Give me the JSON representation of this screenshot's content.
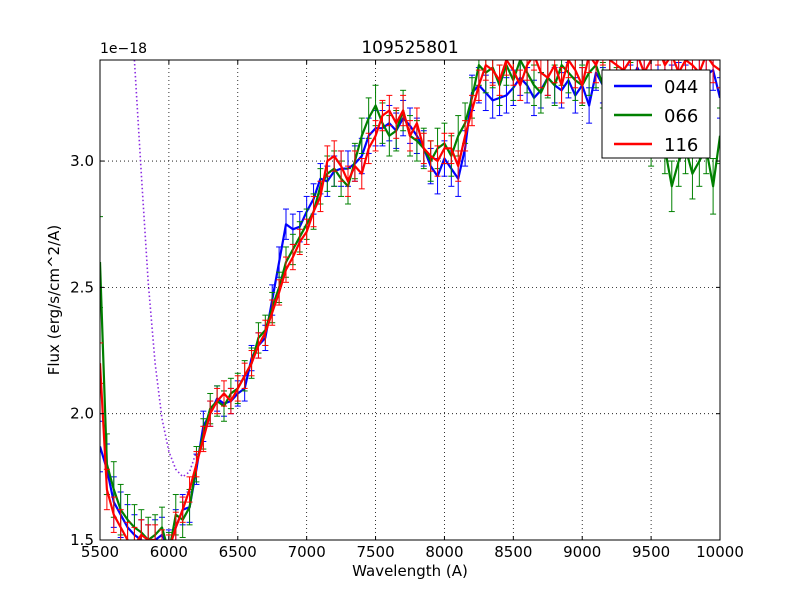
{
  "chart_data": {
    "type": "line",
    "title": "109525801",
    "xlabel": "Wavelength (A)",
    "ylabel": "Flux (erg/s/cm^2/A)",
    "offset_text": "1e−18",
    "xlim": [
      5500,
      10000
    ],
    "ylim": [
      1.5,
      3.4
    ],
    "xticks": [
      5500,
      6000,
      6500,
      7000,
      7500,
      8000,
      8500,
      9000,
      9500,
      10000
    ],
    "yticks": [
      1.5,
      2.0,
      2.5,
      3.0
    ],
    "ytick_labels": [
      "1.5",
      "2.0",
      "2.5",
      "3.0"
    ],
    "grid": true,
    "legend_position": "top-right",
    "colors": {
      "044": "#0000ff",
      "066": "#008000",
      "116": "#ff0000",
      "reference": "#8a2be2"
    },
    "series": [
      {
        "name": "044",
        "color": "#0000ff",
        "x": [
          5500,
          5550,
          5600,
          5650,
          5700,
          5750,
          5800,
          5850,
          5900,
          5950,
          6000,
          6050,
          6100,
          6150,
          6200,
          6250,
          6300,
          6350,
          6400,
          6450,
          6500,
          6550,
          6600,
          6650,
          6700,
          6750,
          6800,
          6850,
          6900,
          6950,
          7000,
          7050,
          7100,
          7150,
          7200,
          7250,
          7300,
          7350,
          7400,
          7450,
          7500,
          7550,
          7600,
          7650,
          7700,
          7750,
          7800,
          7850,
          7900,
          7950,
          8000,
          8050,
          8100,
          8150,
          8200,
          8250,
          8300,
          8350,
          8400,
          8450,
          8500,
          8550,
          8600,
          8650,
          8700,
          8750,
          8800,
          8850,
          8900,
          8950,
          9000,
          9050,
          9100,
          9150,
          9200,
          9250,
          9300,
          9350,
          9400,
          9450,
          9500,
          9550,
          9600,
          9650,
          9700,
          9750,
          9800,
          9850,
          9900,
          9950,
          10000
        ],
        "y": [
          1.87,
          1.78,
          1.65,
          1.6,
          1.55,
          1.52,
          1.5,
          1.48,
          1.5,
          1.52,
          1.47,
          1.55,
          1.62,
          1.63,
          1.78,
          1.95,
          2.0,
          2.06,
          2.04,
          2.05,
          2.08,
          2.1,
          2.22,
          2.27,
          2.3,
          2.45,
          2.6,
          2.75,
          2.73,
          2.74,
          2.8,
          2.85,
          2.93,
          2.92,
          2.96,
          2.97,
          2.97,
          2.99,
          3.02,
          3.1,
          3.13,
          3.13,
          3.15,
          3.12,
          3.17,
          3.14,
          3.1,
          3.05,
          2.98,
          2.94,
          3.01,
          2.97,
          2.93,
          3.05,
          3.27,
          3.3,
          3.27,
          3.24,
          3.25,
          3.26,
          3.29,
          3.33,
          3.3,
          3.25,
          3.28,
          3.33,
          3.3,
          3.28,
          3.32,
          3.26,
          3.3,
          3.22,
          3.35,
          3.3,
          3.33,
          3.27,
          3.36,
          3.3,
          3.37,
          3.32,
          3.35,
          3.33,
          3.36,
          3.3,
          3.31,
          3.3,
          3.33,
          3.32,
          3.34,
          3.36,
          3.25
        ],
        "err": [
          0.1,
          0.1,
          0.1,
          0.09,
          0.09,
          0.08,
          0.08,
          0.08,
          0.08,
          0.07,
          0.07,
          0.07,
          0.06,
          0.06,
          0.06,
          0.06,
          0.05,
          0.05,
          0.05,
          0.05,
          0.05,
          0.05,
          0.05,
          0.05,
          0.05,
          0.06,
          0.06,
          0.06,
          0.06,
          0.06,
          0.06,
          0.06,
          0.06,
          0.06,
          0.06,
          0.07,
          0.07,
          0.07,
          0.07,
          0.07,
          0.07,
          0.07,
          0.07,
          0.07,
          0.07,
          0.07,
          0.07,
          0.07,
          0.07,
          0.07,
          0.07,
          0.07,
          0.07,
          0.07,
          0.07,
          0.07,
          0.07,
          0.07,
          0.07,
          0.07,
          0.07,
          0.07,
          0.07,
          0.07,
          0.07,
          0.07,
          0.07,
          0.07,
          0.07,
          0.07,
          0.07,
          0.07,
          0.07,
          0.07,
          0.07,
          0.08,
          0.08,
          0.08,
          0.08,
          0.08,
          0.08,
          0.08,
          0.08,
          0.08,
          0.08,
          0.08,
          0.08,
          0.08,
          0.08,
          0.08,
          0.08
        ]
      },
      {
        "name": "066",
        "color": "#008000",
        "x": [
          5500,
          5550,
          5600,
          5650,
          5700,
          5750,
          5800,
          5850,
          5900,
          5950,
          6000,
          6050,
          6100,
          6150,
          6200,
          6250,
          6300,
          6350,
          6400,
          6450,
          6500,
          6550,
          6600,
          6650,
          6700,
          6750,
          6800,
          6850,
          6900,
          6950,
          7000,
          7050,
          7100,
          7150,
          7200,
          7250,
          7300,
          7350,
          7400,
          7450,
          7500,
          7550,
          7600,
          7650,
          7700,
          7750,
          7800,
          7850,
          7900,
          7950,
          8000,
          8050,
          8100,
          8150,
          8200,
          8250,
          8300,
          8350,
          8400,
          8450,
          8500,
          8550,
          8600,
          8650,
          8700,
          8750,
          8800,
          8850,
          8900,
          8950,
          9000,
          9050,
          9100,
          9150,
          9200,
          9250,
          9300,
          9350,
          9400,
          9450,
          9500,
          9550,
          9600,
          9650,
          9700,
          9750,
          9800,
          9850,
          9900,
          9950,
          10000
        ],
        "y": [
          2.6,
          1.8,
          1.7,
          1.62,
          1.58,
          1.55,
          1.53,
          1.5,
          1.52,
          1.55,
          1.45,
          1.6,
          1.58,
          1.63,
          1.8,
          1.92,
          2.02,
          2.05,
          2.03,
          2.08,
          2.1,
          2.15,
          2.2,
          2.3,
          2.33,
          2.42,
          2.5,
          2.6,
          2.65,
          2.7,
          2.75,
          2.8,
          2.9,
          2.95,
          2.97,
          2.93,
          2.9,
          3.0,
          3.1,
          3.17,
          3.22,
          3.15,
          3.1,
          3.12,
          3.2,
          3.1,
          3.08,
          3.05,
          3.0,
          3.05,
          3.07,
          3.02,
          3.1,
          3.15,
          3.25,
          3.38,
          3.35,
          3.37,
          3.3,
          3.38,
          3.32,
          3.4,
          3.35,
          3.3,
          3.27,
          3.33,
          3.3,
          3.38,
          3.35,
          3.32,
          3.3,
          3.35,
          3.38,
          3.3,
          3.32,
          3.28,
          3.2,
          3.3,
          3.27,
          3.22,
          3.07,
          3.15,
          3.05,
          2.9,
          3.0,
          3.05,
          2.95,
          3.0,
          3.05,
          2.9,
          3.1
        ],
        "err": [
          0.18,
          0.12,
          0.11,
          0.1,
          0.1,
          0.09,
          0.09,
          0.09,
          0.08,
          0.08,
          0.08,
          0.08,
          0.07,
          0.07,
          0.07,
          0.06,
          0.06,
          0.06,
          0.06,
          0.06,
          0.06,
          0.06,
          0.06,
          0.06,
          0.06,
          0.06,
          0.06,
          0.06,
          0.06,
          0.06,
          0.06,
          0.07,
          0.07,
          0.07,
          0.07,
          0.07,
          0.07,
          0.07,
          0.07,
          0.08,
          0.08,
          0.08,
          0.08,
          0.08,
          0.08,
          0.08,
          0.08,
          0.08,
          0.08,
          0.08,
          0.08,
          0.08,
          0.08,
          0.08,
          0.08,
          0.08,
          0.08,
          0.08,
          0.08,
          0.08,
          0.08,
          0.08,
          0.08,
          0.08,
          0.08,
          0.08,
          0.08,
          0.08,
          0.08,
          0.08,
          0.08,
          0.09,
          0.09,
          0.09,
          0.09,
          0.09,
          0.09,
          0.09,
          0.09,
          0.09,
          0.09,
          0.1,
          0.1,
          0.1,
          0.1,
          0.1,
          0.1,
          0.1,
          0.1,
          0.11,
          0.11
        ]
      },
      {
        "name": "116",
        "color": "#ff0000",
        "x": [
          5500,
          5550,
          5600,
          5650,
          5700,
          5750,
          5800,
          5850,
          5900,
          5950,
          6000,
          6050,
          6100,
          6150,
          6200,
          6250,
          6300,
          6350,
          6400,
          6450,
          6500,
          6550,
          6600,
          6650,
          6700,
          6750,
          6800,
          6850,
          6900,
          6950,
          7000,
          7050,
          7100,
          7150,
          7200,
          7250,
          7300,
          7350,
          7400,
          7450,
          7500,
          7550,
          7600,
          7650,
          7700,
          7750,
          7800,
          7850,
          7900,
          7950,
          8000,
          8050,
          8100,
          8150,
          8200,
          8250,
          8300,
          8350,
          8400,
          8450,
          8500,
          8550,
          8600,
          8650,
          8700,
          8750,
          8800,
          8850,
          8900,
          8950,
          9000,
          9050,
          9100,
          9150,
          9200,
          9250,
          9300,
          9350,
          9400,
          9450,
          9500,
          9550,
          9600,
          9650,
          9700,
          9750,
          9800,
          9850,
          9900,
          9950,
          10000
        ],
        "y": [
          2.2,
          1.7,
          1.6,
          1.55,
          1.5,
          1.48,
          1.52,
          1.5,
          1.5,
          1.48,
          1.46,
          1.55,
          1.62,
          1.7,
          1.8,
          1.9,
          2.0,
          2.05,
          2.08,
          2.05,
          2.1,
          2.15,
          2.2,
          2.27,
          2.32,
          2.4,
          2.48,
          2.57,
          2.62,
          2.68,
          2.72,
          2.8,
          2.86,
          3.0,
          3.02,
          2.98,
          2.92,
          2.98,
          2.95,
          3.05,
          3.1,
          3.18,
          3.2,
          3.15,
          3.2,
          3.1,
          3.15,
          3.05,
          3.02,
          3.0,
          3.05,
          3.05,
          2.98,
          3.1,
          3.2,
          3.3,
          3.38,
          3.36,
          3.32,
          3.4,
          3.36,
          3.3,
          3.38,
          3.42,
          3.35,
          3.33,
          3.38,
          3.3,
          3.4,
          3.36,
          3.3,
          3.42,
          3.38,
          3.45,
          3.4,
          3.38,
          3.36,
          3.4,
          3.42,
          3.35,
          3.4,
          3.45,
          3.38,
          3.42,
          3.35,
          3.4,
          3.38,
          3.35,
          3.42,
          3.38,
          3.36
        ],
        "err": [
          0.08,
          0.08,
          0.07,
          0.07,
          0.07,
          0.07,
          0.06,
          0.06,
          0.06,
          0.06,
          0.06,
          0.06,
          0.05,
          0.05,
          0.05,
          0.05,
          0.05,
          0.05,
          0.05,
          0.05,
          0.05,
          0.05,
          0.05,
          0.05,
          0.05,
          0.05,
          0.05,
          0.05,
          0.05,
          0.05,
          0.05,
          0.06,
          0.06,
          0.06,
          0.06,
          0.06,
          0.06,
          0.06,
          0.06,
          0.06,
          0.06,
          0.06,
          0.06,
          0.06,
          0.06,
          0.06,
          0.06,
          0.06,
          0.06,
          0.06,
          0.06,
          0.06,
          0.06,
          0.06,
          0.06,
          0.06,
          0.06,
          0.06,
          0.06,
          0.06,
          0.06,
          0.06,
          0.06,
          0.06,
          0.06,
          0.07,
          0.07,
          0.07,
          0.07,
          0.07,
          0.07,
          0.07,
          0.07,
          0.07,
          0.07,
          0.07,
          0.07,
          0.07,
          0.07,
          0.07,
          0.07,
          0.07,
          0.07,
          0.07,
          0.07,
          0.07,
          0.07,
          0.07,
          0.07,
          0.07,
          0.07
        ]
      }
    ],
    "reference_curve": {
      "style": "dotted",
      "color": "#8a2be2",
      "x": [
        5750,
        5800,
        5850,
        5900,
        5950,
        6000,
        6050,
        6100,
        6150,
        6200
      ],
      "y": [
        3.4,
        2.95,
        2.52,
        2.2,
        1.98,
        1.85,
        1.78,
        1.75,
        1.77,
        1.85
      ]
    }
  }
}
